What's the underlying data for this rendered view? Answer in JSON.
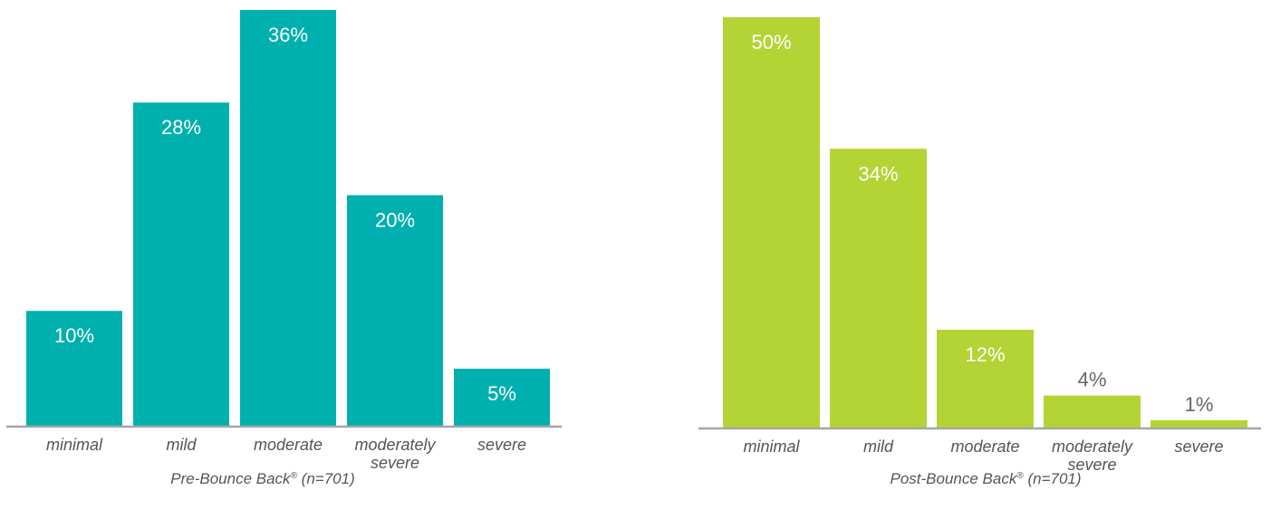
{
  "chart_data": [
    {
      "type": "bar",
      "categories": [
        [
          "minimal"
        ],
        [
          "mild"
        ],
        [
          "moderate"
        ],
        [
          "moderately",
          "severe"
        ],
        [
          "severe"
        ]
      ],
      "values": [
        10,
        28,
        36,
        20,
        5
      ],
      "value_labels": [
        "10%",
        "28%",
        "36%",
        "20%",
        "5%"
      ],
      "caption": "Pre-Bounce Back",
      "caption_mark": "®",
      "caption_suffix": " (n=701)",
      "color": "#00b0ae",
      "ylim": [
        0,
        36
      ]
    },
    {
      "type": "bar",
      "categories": [
        [
          "minimal"
        ],
        [
          "mild"
        ],
        [
          "moderate"
        ],
        [
          "moderately",
          "severe"
        ],
        [
          "severe"
        ]
      ],
      "values": [
        50,
        34,
        12,
        4,
        1
      ],
      "value_labels": [
        "50%",
        "34%",
        "12%",
        "4%",
        "1%"
      ],
      "caption": "Post-Bounce Back",
      "caption_mark": "®",
      "caption_suffix": " (n=701)",
      "color": "#b4d334",
      "ylim": [
        0,
        50
      ]
    }
  ]
}
